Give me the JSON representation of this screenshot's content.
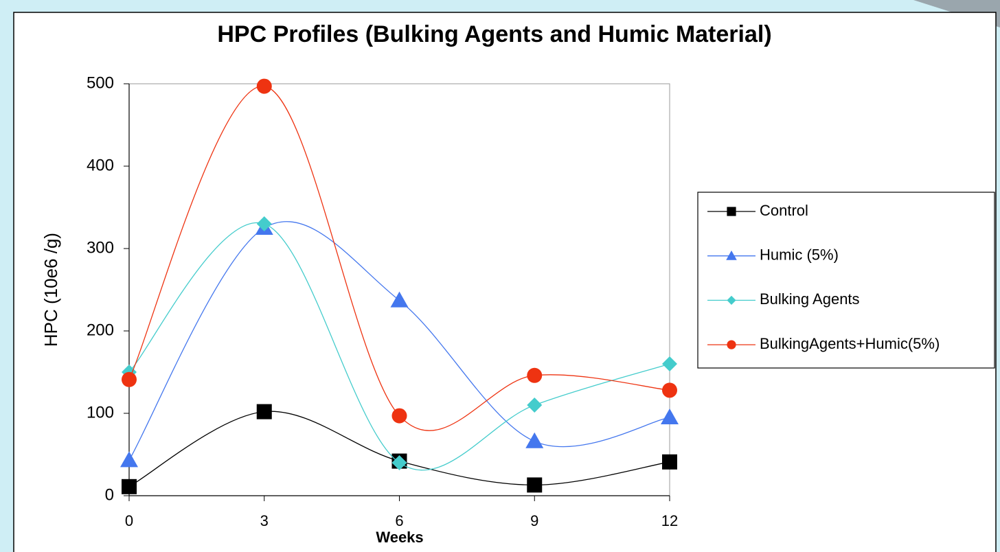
{
  "chart_data": {
    "type": "line",
    "title": "HPC Profiles (Bulking Agents and Humic Material)",
    "x_label": "Weeks",
    "y_label": "HPC (10e6 /g)",
    "x": [
      0,
      3,
      6,
      9,
      12
    ],
    "series": [
      {
        "name": "Control",
        "color": "#000000",
        "marker": "square",
        "values": [
          11,
          102,
          42,
          13,
          41
        ]
      },
      {
        "name": "Humic (5%)",
        "color": "#4477ee",
        "marker": "triangle",
        "values": [
          43,
          325,
          237,
          66,
          95
        ]
      },
      {
        "name": "Bulking Agents",
        "color": "#44cccc",
        "marker": "diamond",
        "values": [
          150,
          330,
          40,
          110,
          160
        ]
      },
      {
        "name": "BulkingAgents+Humic(5%)",
        "color": "#ee3311",
        "marker": "circle",
        "values": [
          141,
          497,
          97,
          146,
          128
        ]
      }
    ],
    "xlim": [
      0,
      12
    ],
    "xticks": [
      0,
      3,
      6,
      9,
      12
    ],
    "ylim": [
      0,
      500
    ],
    "yticks": [
      0,
      100,
      200,
      300,
      400,
      500
    ],
    "smooth": true,
    "legend": "right"
  }
}
